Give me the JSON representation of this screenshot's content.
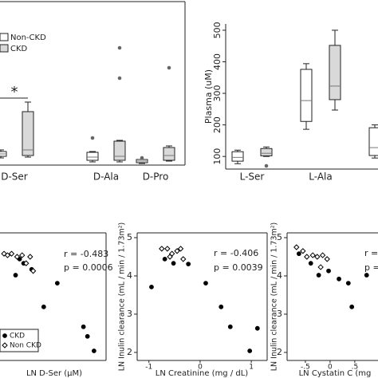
{
  "chart_data": [
    {
      "type": "box",
      "categories": [
        "D-Ser",
        "D-Ala",
        "D-Pro"
      ],
      "ylim": [
        0,
        100
      ],
      "annotations": [
        "*"
      ],
      "series": [
        {
          "name": "Non-CKD",
          "color": "#ffffff",
          "stats": [
            {
              "whislo": 3.5,
              "q1": 4.5,
              "med": 6,
              "q3": 7.5,
              "whishi": 8.5
            },
            {
              "whislo": 1,
              "q1": 2,
              "med": 4,
              "q3": 7,
              "whishi": 7.5,
              "fliers": [
                16
              ]
            },
            {
              "whislo": 0,
              "q1": 0.5,
              "med": 1.5,
              "q3": 2.5,
              "whishi": 2.5,
              "fliers": [
                3.5
              ]
            }
          ]
        },
        {
          "name": "CKD",
          "color": "#d9d9d9",
          "stats": [
            {
              "whislo": 4,
              "q1": 5,
              "med": 8.5,
              "q3": 32.5,
              "whishi": 38.5
            },
            {
              "whislo": 1,
              "q1": 2,
              "med": 4.5,
              "q3": 14,
              "whishi": 14.5,
              "fliers": [
                53.5,
                72.5
              ]
            },
            {
              "whislo": 1.5,
              "q1": 2,
              "med": 5,
              "q3": 10,
              "whishi": 11,
              "fliers": [
                60
              ]
            }
          ]
        }
      ]
    },
    {
      "type": "box",
      "y_label": "Plasma (uM)",
      "categories": [
        "L-Ser",
        "L-Ala",
        null
      ],
      "ylim": [
        60,
        520
      ],
      "yticks": [
        100,
        200,
        300,
        400,
        500
      ],
      "series": [
        {
          "color": "#ffffff",
          "stats": [
            {
              "whislo": 77,
              "q1": 85,
              "med": 97,
              "q3": 115,
              "whishi": 120
            },
            {
              "whislo": 186,
              "q1": 211,
              "med": 277,
              "q3": 376,
              "whishi": 394
            },
            {
              "whislo": 95,
              "q1": 103,
              "med": 128,
              "q3": 191,
              "whishi": 200
            }
          ]
        },
        {
          "color": "#d9d9d9",
          "stats": [
            {
              "whislo": 100,
              "q1": 102,
              "med": 110,
              "q3": 125,
              "whishi": 130,
              "fliers": [
                70
              ]
            },
            {
              "whislo": 247,
              "q1": 280,
              "med": 323,
              "q3": 452,
              "whishi": 500
            },
            null
          ]
        }
      ]
    },
    {
      "type": "scatter",
      "x_label": "LN D-Ser (μM)",
      "xlim": [
        0.29,
        2.4
      ],
      "ylim": [
        1.79,
        5.125
      ],
      "annotations": [
        "r = -0.483",
        "p = 0.0006"
      ],
      "series": [
        {
          "name": "CKD",
          "marker": "circle",
          "color": "#000000",
          "x": [
            0.6,
            0.68,
            0.76,
            0.92,
            1.43,
            1.16,
            1.95,
            2.03,
            2.16
          ],
          "values": [
            4.02,
            4.44,
            4.33,
            4.17,
            3.81,
            3.19,
            2.67,
            2.42,
            2.04
          ]
        },
        {
          "name": "Non CKD",
          "marker": "diamond",
          "color": "#ffffff",
          "x": [
            0.37,
            0.44,
            0.52,
            0.63,
            0.73,
            0.81,
            0.89,
            0.95
          ],
          "values": [
            4.58,
            4.54,
            4.58,
            4.5,
            4.54,
            4.33,
            4.5,
            4.13
          ]
        }
      ]
    },
    {
      "type": "scatter",
      "x_label": "LN Creatinine (mg / dL)",
      "y_label": "LN Inulin clearance (mL / min / 1.73m²)",
      "xlim": [
        -1.23,
        1.31
      ],
      "ylim": [
        1.79,
        5.125
      ],
      "xticks": [
        -1,
        0,
        1
      ],
      "yticks": [
        2,
        3,
        4,
        5
      ],
      "annotations": [
        "r = -0.406",
        "p = 0.0039"
      ],
      "series": [
        {
          "marker": "circle",
          "color": "#000000",
          "x": [
            -0.95,
            -0.69,
            -0.52,
            -0.23,
            0.11,
            0.41,
            0.59,
            0.97,
            1.12
          ],
          "values": [
            3.71,
            4.44,
            4.33,
            4.31,
            3.81,
            3.19,
            2.67,
            2.04,
            2.63
          ]
        },
        {
          "marker": "diamond",
          "color": "#ffffff",
          "x": [
            -0.75,
            -0.64,
            -0.55,
            -0.45,
            -0.38,
            -0.59,
            -0.33
          ],
          "values": [
            4.71,
            4.71,
            4.58,
            4.65,
            4.71,
            4.5,
            4.44
          ]
        }
      ]
    },
    {
      "type": "scatter",
      "x_label": "LN Cystatin C (mg",
      "y_label": "LN Inulin clearance (mL / min / 1.73m²)",
      "xlim": [
        -0.87,
        0.97
      ],
      "ylim": [
        1.79,
        5.125
      ],
      "xticks": [
        {
          "value": -0.5,
          "label": "-.5"
        },
        0,
        {
          "value": 0.5,
          "label": ".5"
        }
      ],
      "yticks": [
        2,
        3,
        4,
        5
      ],
      "annotations": [
        "r =",
        "p ="
      ],
      "series": [
        {
          "marker": "circle",
          "color": "#000000",
          "x": [
            -0.63,
            -0.39,
            -0.23,
            -0.03,
            0.18,
            0.37,
            0.44,
            0.74
          ],
          "values": [
            4.58,
            4.33,
            4.02,
            4.13,
            3.92,
            3.81,
            3.19,
            4.02
          ]
        },
        {
          "marker": "diamond",
          "color": "#ffffff",
          "x": [
            -0.68,
            -0.55,
            -0.47,
            -0.35,
            -0.26,
            -0.15,
            -0.06,
            -0.19
          ],
          "values": [
            4.75,
            4.65,
            4.5,
            4.54,
            4.5,
            4.54,
            4.44,
            4.23
          ]
        }
      ]
    }
  ]
}
